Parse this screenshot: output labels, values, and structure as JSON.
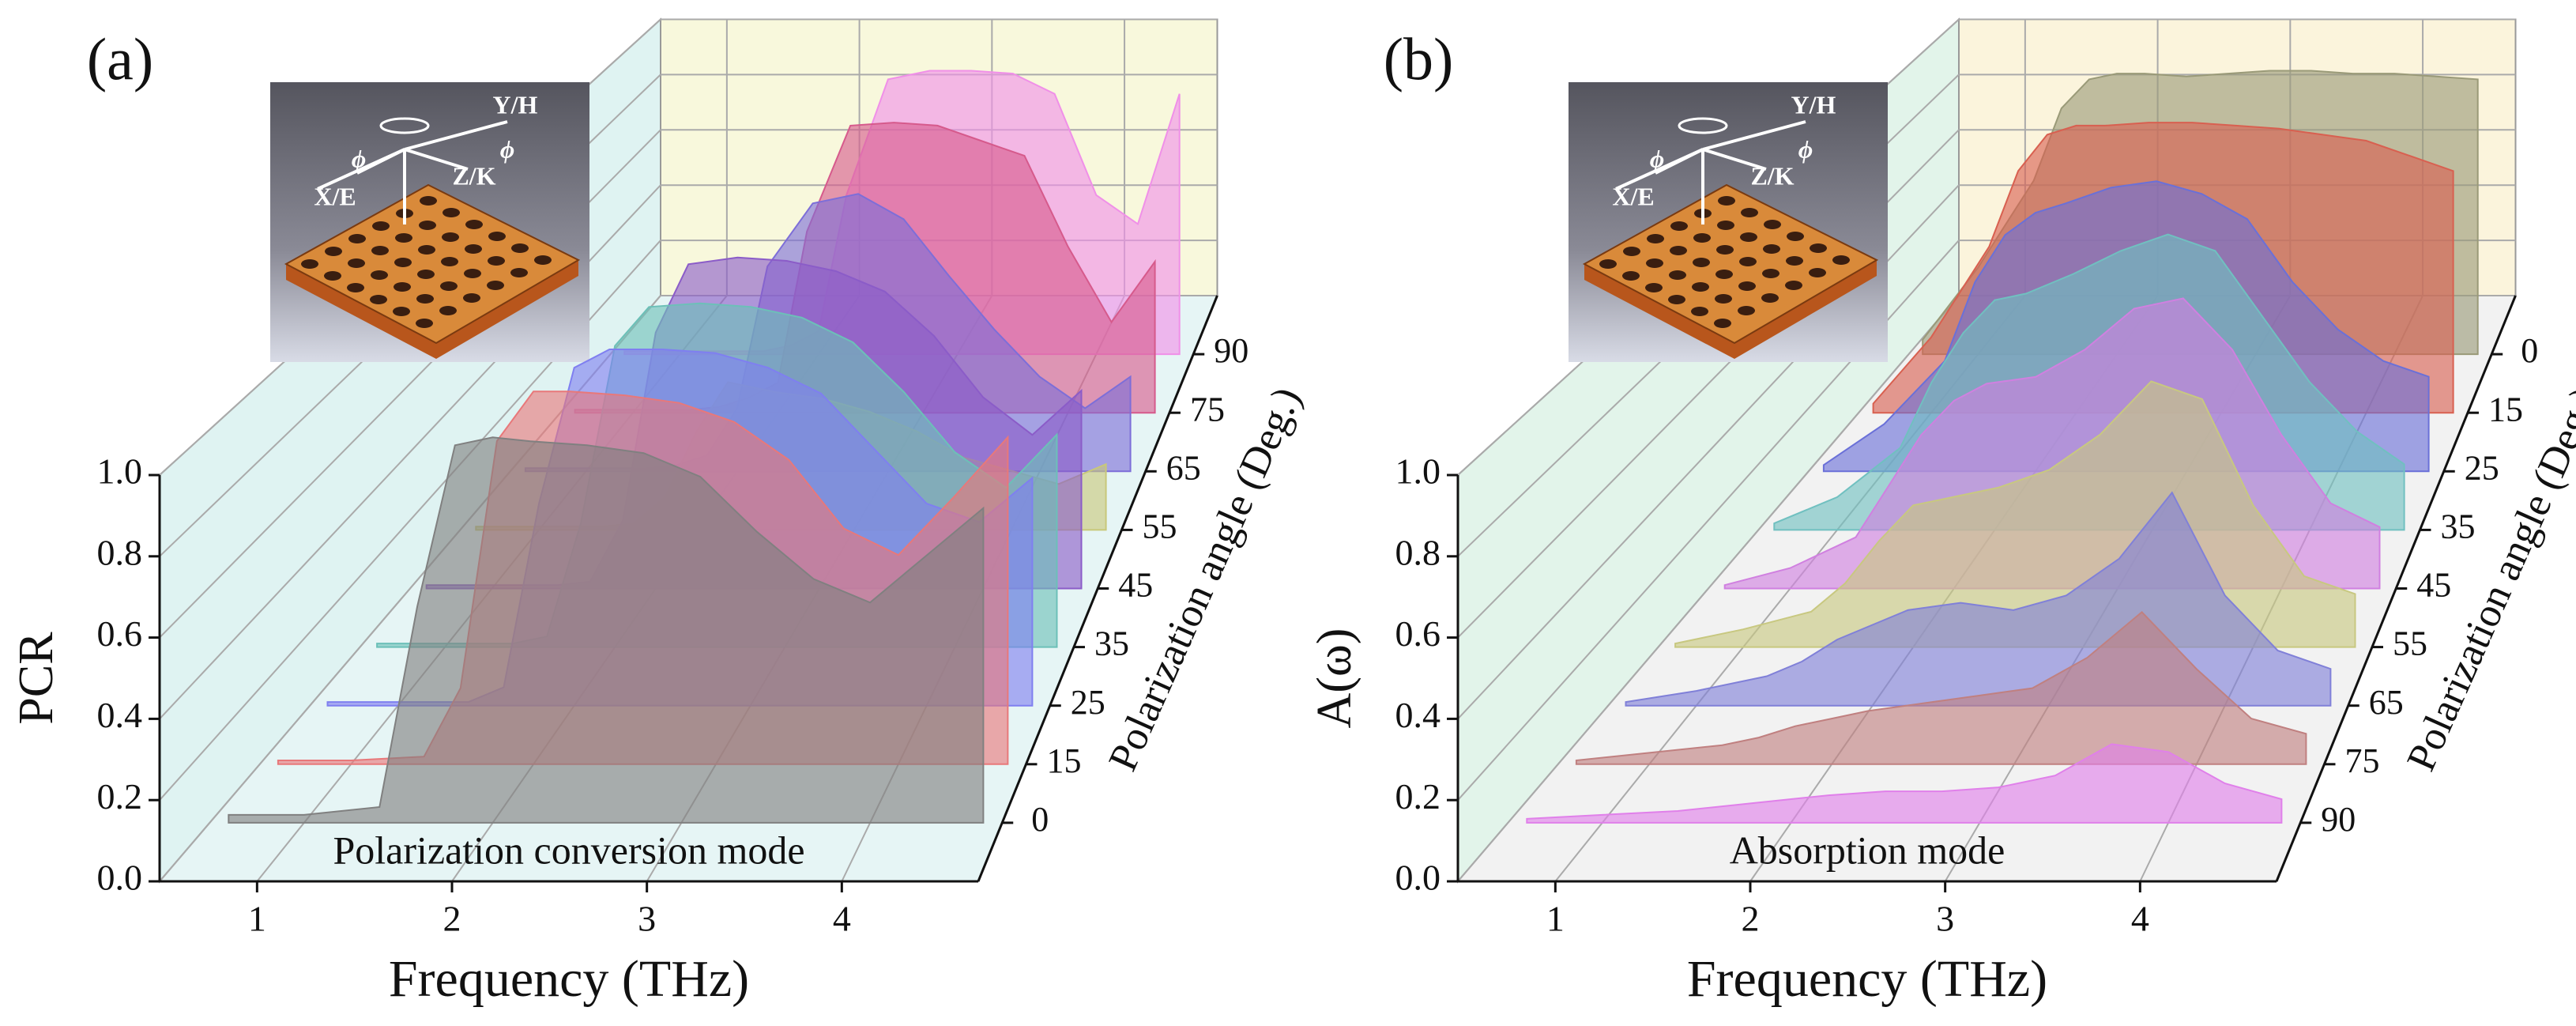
{
  "chart_data": [
    {
      "type": "waterfall3d",
      "panel_label": "(a)",
      "xlabel": "Frequency (THz)",
      "ylabel": "PCR",
      "zlabel": "Polarization angle (Deg.)",
      "annotation": "Polarization conversion mode",
      "inset_labels": [
        "Y/H",
        "X/E",
        "Z/K",
        "ϕ",
        "ϕ"
      ],
      "wall_color": "#dff3f2",
      "back_color": "#f8f8dc",
      "floor_color": "#e6f5f5",
      "grid": true,
      "xlim": [
        0.5,
        4.7
      ],
      "xticks": [
        1,
        2,
        3,
        4
      ],
      "ylim": [
        0,
        1
      ],
      "yticks": [
        {
          "value": 0,
          "label": "0.0"
        },
        {
          "value": 0.2,
          "label": "0.2"
        },
        {
          "value": 0.4,
          "label": "0.4"
        },
        {
          "value": 0.6,
          "label": "0.6"
        },
        {
          "value": 0.8,
          "label": "0.8"
        },
        {
          "value": 1,
          "label": "1.0"
        }
      ],
      "x": [
        0.6,
        1.0,
        1.4,
        1.6,
        1.8,
        2.0,
        2.2,
        2.5,
        2.8,
        3.1,
        3.4,
        3.7,
        4.0,
        4.3,
        4.6
      ],
      "series": [
        {
          "name": "0",
          "color": "#808080",
          "values": [
            0.02,
            0.02,
            0.04,
            0.55,
            0.96,
            0.98,
            0.97,
            0.96,
            0.94,
            0.88,
            0.74,
            0.62,
            0.56,
            0.68,
            0.8
          ]
        },
        {
          "name": "15",
          "color": "#e8787a",
          "values": [
            0.01,
            0.01,
            0.02,
            0.2,
            0.85,
            0.98,
            0.98,
            0.97,
            0.95,
            0.9,
            0.8,
            0.62,
            0.55,
            0.7,
            0.86
          ]
        },
        {
          "name": "25",
          "color": "#7f7ff0",
          "values": [
            0.01,
            0.01,
            0.01,
            0.05,
            0.55,
            0.92,
            0.97,
            0.97,
            0.96,
            0.92,
            0.85,
            0.7,
            0.55,
            0.5,
            0.62
          ]
        },
        {
          "name": "35",
          "color": "#6cc0b8",
          "values": [
            0.01,
            0.01,
            0.01,
            0.03,
            0.35,
            0.85,
            0.96,
            0.97,
            0.96,
            0.93,
            0.86,
            0.72,
            0.55,
            0.45,
            0.6
          ]
        },
        {
          "name": "45",
          "color": "#8b5cc8",
          "values": [
            0.01,
            0.01,
            0.01,
            0.02,
            0.2,
            0.75,
            0.95,
            0.97,
            0.96,
            0.93,
            0.87,
            0.74,
            0.56,
            0.45,
            0.58
          ]
        },
        {
          "name": "55",
          "color": "#c8c87a",
          "values": [
            0.01,
            0.01,
            0.01,
            0.02,
            0.1,
            0.3,
            0.45,
            0.42,
            0.4,
            0.36,
            0.3,
            0.22,
            0.18,
            0.14,
            0.2
          ]
        },
        {
          "name": "65",
          "color": "#7d6ed8",
          "values": [
            0.01,
            0.01,
            0.01,
            0.02,
            0.05,
            0.2,
            0.65,
            0.85,
            0.88,
            0.8,
            0.62,
            0.45,
            0.3,
            0.2,
            0.3
          ]
        },
        {
          "name": "75",
          "color": "#d65a8c",
          "values": [
            0.01,
            0.01,
            0.01,
            0.02,
            0.05,
            0.1,
            0.6,
            0.95,
            0.96,
            0.95,
            0.9,
            0.85,
            0.55,
            0.3,
            0.5
          ]
        },
        {
          "name": "90",
          "color": "#f090e8",
          "values": [
            0.01,
            0.01,
            0.01,
            0.01,
            0.03,
            0.08,
            0.55,
            0.95,
            0.98,
            0.98,
            0.97,
            0.9,
            0.55,
            0.45,
            0.9
          ]
        }
      ]
    },
    {
      "type": "waterfall3d",
      "panel_label": "(b)",
      "xlabel": "Frequency (THz)",
      "ylabel": "A(ω)",
      "zlabel": "Polarization angle (Deg.)",
      "annotation": "Absorption mode",
      "inset_labels": [
        "Y/H",
        "X/E",
        "Z/K",
        "ϕ",
        "ϕ"
      ],
      "wall_color": "#e2f4ea",
      "back_color": "#fbf4dc",
      "floor_color": "#f2f2f2",
      "grid": true,
      "xlim": [
        0.5,
        4.7
      ],
      "xticks": [
        1,
        2,
        3,
        4
      ],
      "ylim": [
        0,
        1
      ],
      "yticks": [
        {
          "value": 0,
          "label": "0.0"
        },
        {
          "value": 0.2,
          "label": "0.2"
        },
        {
          "value": 0.4,
          "label": "0.4"
        },
        {
          "value": 0.6,
          "label": "0.6"
        },
        {
          "value": 0.8,
          "label": "0.8"
        },
        {
          "value": 1,
          "label": "1.0"
        }
      ],
      "x": [
        0.6,
        1.0,
        1.4,
        1.6,
        1.8,
        2.0,
        2.2,
        2.5,
        2.8,
        3.1,
        3.4,
        3.7,
        4.0,
        4.3,
        4.6
      ],
      "series": [
        {
          "name": "90",
          "color": "#e080ea",
          "values": [
            0.01,
            0.02,
            0.03,
            0.04,
            0.05,
            0.06,
            0.07,
            0.08,
            0.08,
            0.09,
            0.12,
            0.2,
            0.18,
            0.1,
            0.06
          ]
        },
        {
          "name": "75",
          "color": "#c08080",
          "values": [
            0.01,
            0.03,
            0.05,
            0.07,
            0.1,
            0.12,
            0.14,
            0.16,
            0.18,
            0.2,
            0.28,
            0.4,
            0.25,
            0.12,
            0.08
          ]
        },
        {
          "name": "65",
          "color": "#8080d8",
          "values": [
            0.01,
            0.04,
            0.08,
            0.12,
            0.18,
            0.22,
            0.26,
            0.28,
            0.26,
            0.3,
            0.4,
            0.58,
            0.3,
            0.15,
            0.1
          ]
        },
        {
          "name": "55",
          "color": "#c8c880",
          "values": [
            0.01,
            0.05,
            0.1,
            0.18,
            0.3,
            0.4,
            0.42,
            0.45,
            0.5,
            0.6,
            0.75,
            0.7,
            0.4,
            0.2,
            0.15
          ]
        },
        {
          "name": "45",
          "color": "#d080e0",
          "values": [
            0.01,
            0.06,
            0.15,
            0.3,
            0.45,
            0.55,
            0.6,
            0.62,
            0.7,
            0.82,
            0.85,
            0.7,
            0.45,
            0.25,
            0.18
          ]
        },
        {
          "name": "35",
          "color": "#70c0c0",
          "values": [
            0.02,
            0.1,
            0.25,
            0.45,
            0.6,
            0.7,
            0.72,
            0.78,
            0.85,
            0.9,
            0.85,
            0.65,
            0.45,
            0.3,
            0.2
          ]
        },
        {
          "name": "25",
          "color": "#6a70d8",
          "values": [
            0.02,
            0.15,
            0.35,
            0.6,
            0.75,
            0.82,
            0.85,
            0.9,
            0.92,
            0.88,
            0.8,
            0.6,
            0.45,
            0.35,
            0.3
          ]
        },
        {
          "name": "15",
          "color": "#d86050",
          "values": [
            0.03,
            0.25,
            0.55,
            0.8,
            0.92,
            0.95,
            0.95,
            0.96,
            0.96,
            0.95,
            0.94,
            0.92,
            0.9,
            0.85,
            0.8
          ]
        },
        {
          "name": "0",
          "color": "#9a9a78",
          "values": [
            0.05,
            0.3,
            0.6,
            0.85,
            0.95,
            0.97,
            0.97,
            0.96,
            0.97,
            0.98,
            0.98,
            0.97,
            0.97,
            0.96,
            0.95
          ]
        }
      ]
    }
  ]
}
